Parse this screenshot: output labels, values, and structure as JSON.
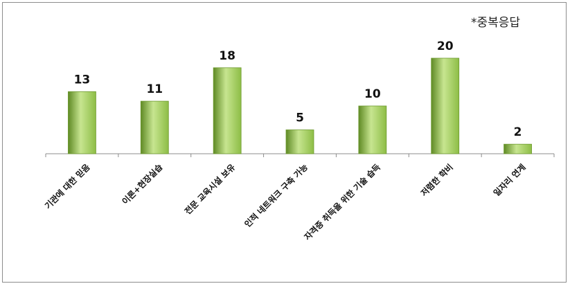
{
  "note": "*중복응답",
  "chart_data": {
    "type": "bar",
    "categories": [
      "기관에 대한 믿음",
      "이론+현장실습",
      "전문 교육시설 보유",
      "인적 네트워크 구축 가능",
      "자격증 취득을 위한 기술 습득",
      "저렴한 학비",
      "일자리 연계"
    ],
    "values": [
      13,
      11,
      18,
      5,
      10,
      20,
      2
    ],
    "title": "",
    "xlabel": "",
    "ylabel": "",
    "ylim": [
      0,
      21
    ],
    "grid": false,
    "legend": "none",
    "bar_color": "#8dbd46",
    "bar_color_light": "#c7e590",
    "bar_color_dark": "#5f8a25"
  }
}
